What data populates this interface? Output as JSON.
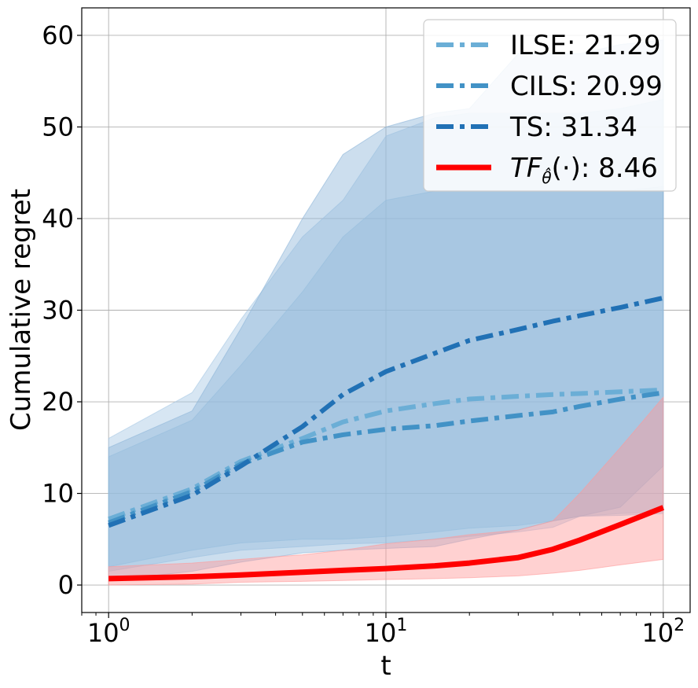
{
  "chart_data": {
    "type": "line",
    "xscale": "log",
    "xlabel": "t",
    "ylabel": "Cumulative regret",
    "xlim": [
      0.8,
      125
    ],
    "ylim": [
      -3,
      63
    ],
    "xticks": [
      {
        "value": 1,
        "base": "10",
        "exp": "0"
      },
      {
        "value": 10,
        "base": "10",
        "exp": "1"
      },
      {
        "value": 100,
        "base": "10",
        "exp": "2"
      }
    ],
    "yticks": [
      0,
      10,
      20,
      30,
      40,
      50,
      60
    ],
    "grid": true,
    "legend_position": "top-right",
    "x": [
      1,
      2,
      3,
      5,
      7,
      10,
      15,
      20,
      30,
      40,
      50,
      70,
      100
    ],
    "series": [
      {
        "name": "ILSE",
        "legend_label": "ILSE: 21.29",
        "color": "#6baed6",
        "style": "dashdot",
        "values": [
          7.2,
          10.5,
          13.5,
          16.0,
          17.8,
          19.0,
          19.8,
          20.3,
          20.6,
          20.8,
          20.9,
          21.1,
          21.29
        ],
        "band_low": [
          1.5,
          3.0,
          3.8,
          4.2,
          4.5,
          4.6,
          5.0,
          5.3,
          5.8,
          6.3,
          7.5,
          7.8,
          8.0
        ],
        "band_high": [
          16.0,
          21.0,
          29.0,
          38.0,
          42.0,
          49.0,
          51.0,
          51.5,
          51.5,
          51.5,
          51.5,
          52.0,
          53.0
        ],
        "band_color": "#a6c8e4"
      },
      {
        "name": "CILS",
        "legend_label": "CILS: 20.99",
        "color": "#4292c6",
        "style": "dashdot",
        "values": [
          6.8,
          10.2,
          13.2,
          15.6,
          16.4,
          17.0,
          17.4,
          17.9,
          18.5,
          18.9,
          19.5,
          20.3,
          20.99
        ],
        "band_low": [
          2.0,
          3.8,
          4.6,
          5.0,
          5.0,
          5.3,
          5.8,
          6.2,
          6.5,
          7.0,
          7.5,
          7.6,
          7.8
        ],
        "band_high": [
          14.0,
          18.0,
          24.0,
          32.0,
          38.0,
          42.0,
          43.0,
          43.0,
          43.0,
          43.0,
          43.0,
          43.0,
          43.5
        ],
        "band_color": "#9dc3e0"
      },
      {
        "name": "TS",
        "legend_label": "TS: 31.34",
        "color": "#2171b5",
        "style": "dashdot",
        "values": [
          6.5,
          9.8,
          13.0,
          17.3,
          20.8,
          23.3,
          25.3,
          26.7,
          27.9,
          28.8,
          29.4,
          30.3,
          31.34
        ],
        "band_low": [
          0.5,
          1.5,
          2.5,
          3.5,
          3.8,
          4.0,
          4.2,
          5.0,
          6.0,
          7.0,
          7.5,
          8.5,
          13.0
        ],
        "band_high": [
          15.0,
          19.0,
          28.0,
          40.0,
          47.0,
          50.0,
          51.5,
          52.0,
          58.0,
          58.0,
          58.0,
          59.0,
          59.5
        ],
        "band_color": "#8db6d9"
      },
      {
        "name": "TF",
        "legend_label_main": "TF",
        "legend_label_sub": "θ̂",
        "legend_label_rest": "(·): 8.46",
        "color": "#ff0000",
        "style": "solid",
        "values": [
          0.7,
          0.9,
          1.1,
          1.4,
          1.6,
          1.8,
          2.1,
          2.4,
          3.0,
          3.9,
          4.9,
          6.6,
          8.46
        ],
        "band_low": [
          0.0,
          0.1,
          0.3,
          0.4,
          0.5,
          0.6,
          0.7,
          0.8,
          1.0,
          1.3,
          1.6,
          2.2,
          2.8
        ],
        "band_high": [
          2.0,
          2.4,
          2.8,
          3.3,
          3.8,
          4.5,
          5.0,
          5.5,
          6.0,
          7.0,
          10.0,
          15.0,
          20.5
        ],
        "band_color": "#ff9a9a"
      }
    ]
  }
}
